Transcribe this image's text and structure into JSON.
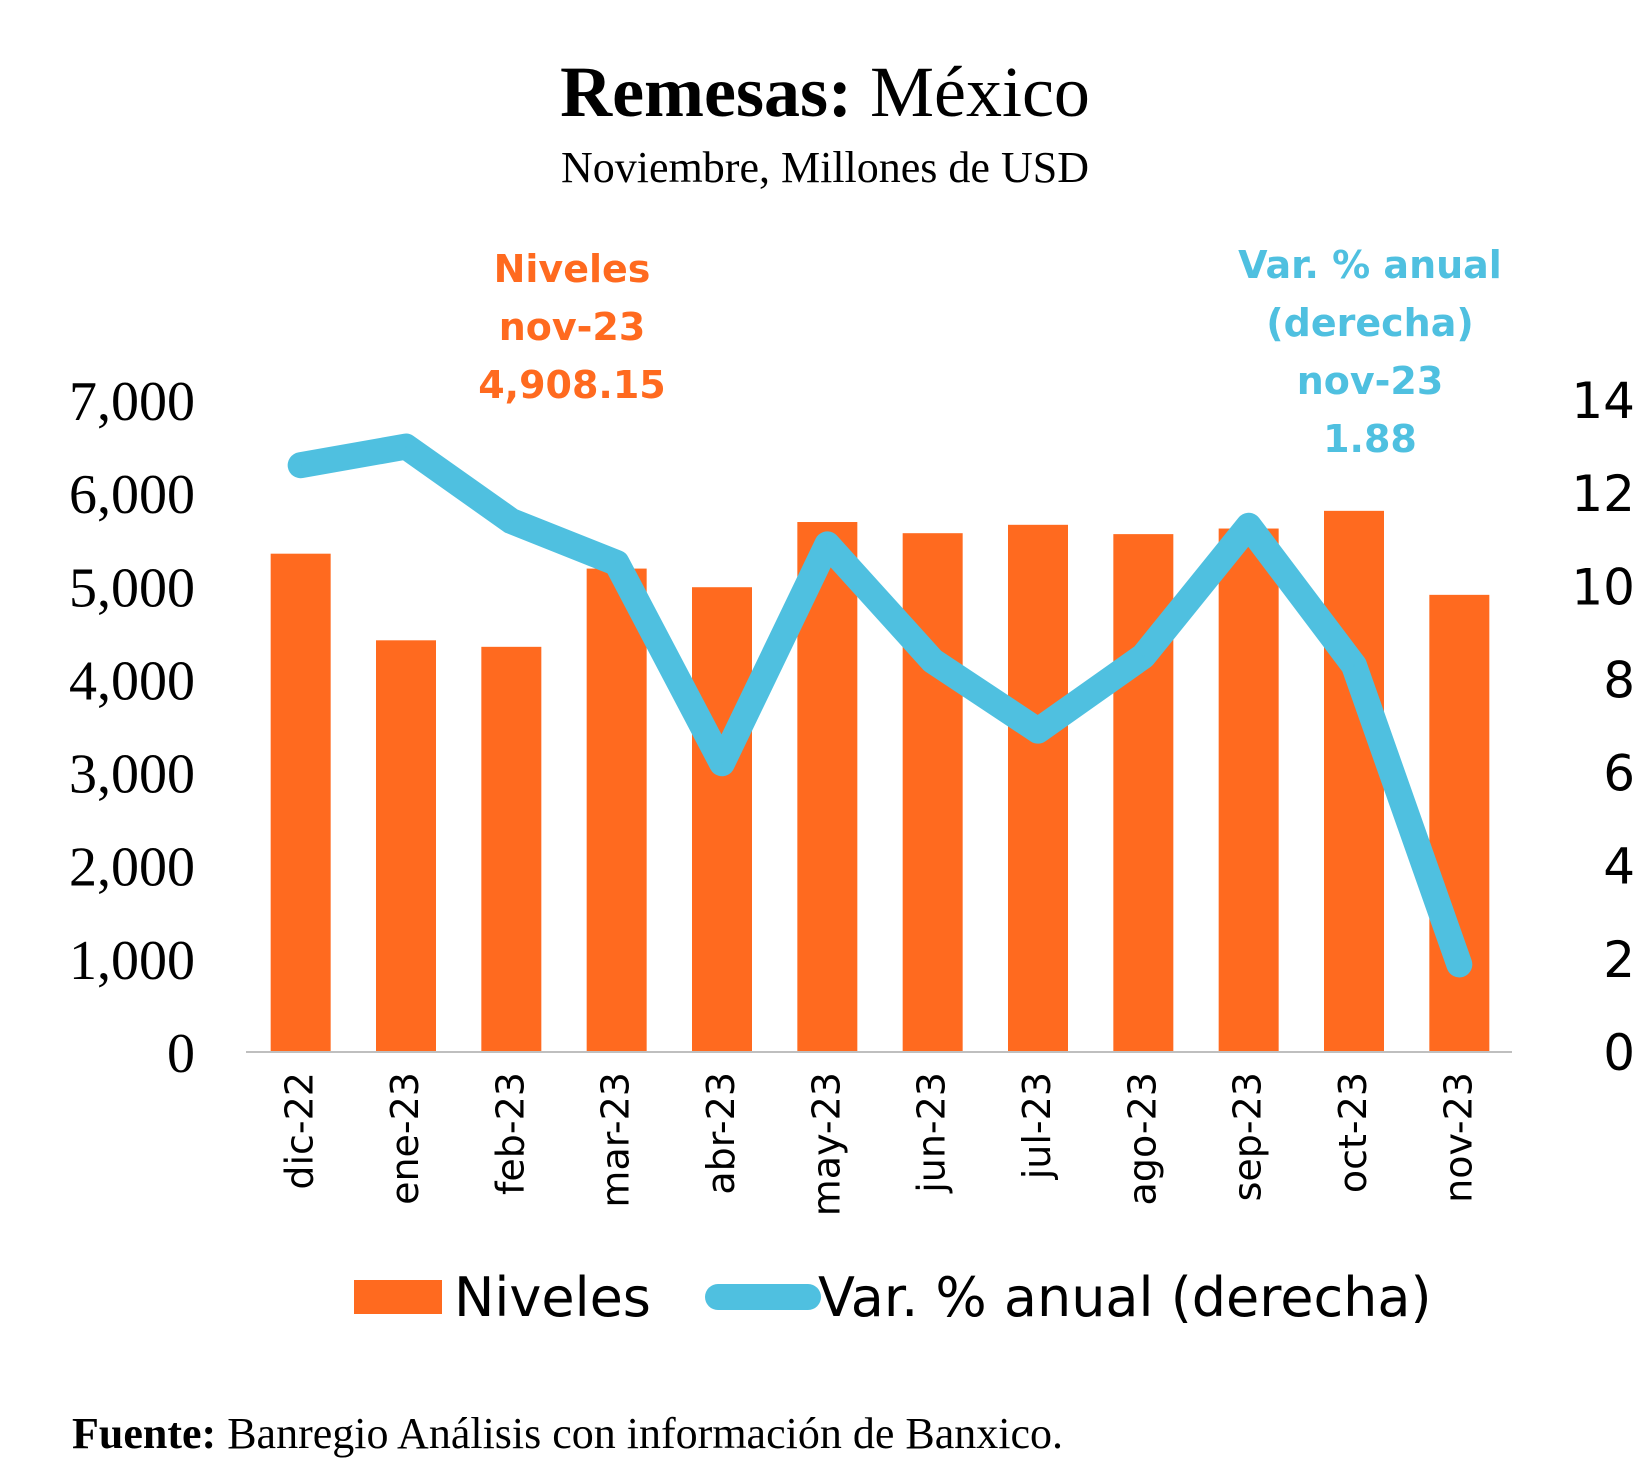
{
  "header": {
    "title_bold": "Remesas:",
    "title_rest": " México",
    "subtitle": "Noviembre, Millones de USD"
  },
  "annotations": {
    "bars": [
      "Niveles",
      "nov-23",
      "4,908.15"
    ],
    "line": [
      "Var. % anual",
      "(derecha)",
      "nov-23",
      "1.88"
    ]
  },
  "legend": {
    "bars_label": "Niveles",
    "line_label": "Var. % anual (derecha)"
  },
  "source": {
    "label": "Fuente:",
    "text": " Banregio Análisis con información de Banxico."
  },
  "colors": {
    "bars": "#FF6A1F",
    "line": "#4FC0E0",
    "axis": "#bfbfbf"
  },
  "chart_data": {
    "type": "bar",
    "categories": [
      "dic-22",
      "ene-23",
      "feb-23",
      "mar-23",
      "abr-23",
      "may-23",
      "jun-23",
      "jul-23",
      "ago-23",
      "sep-23",
      "oct-23",
      "nov-23"
    ],
    "series": [
      {
        "name": "Niveles",
        "type": "bar",
        "axis": "left",
        "values": [
          5350,
          4420,
          4350,
          5190,
          4990,
          5690,
          5570,
          5660,
          5560,
          5620,
          5810,
          4908.15
        ]
      },
      {
        "name": "Var. % anual (derecha)",
        "type": "line",
        "axis": "right",
        "values": [
          12.6,
          13.0,
          11.4,
          10.5,
          6.2,
          10.9,
          8.4,
          6.9,
          8.5,
          11.3,
          8.3,
          1.88
        ]
      }
    ],
    "y_left": {
      "min": 0,
      "max": 7000,
      "ticks": [
        "0",
        "1,000",
        "2,000",
        "3,000",
        "4,000",
        "5,000",
        "6,000",
        "7,000"
      ]
    },
    "y_right": {
      "min": 0,
      "max": 14,
      "ticks": [
        "0",
        "2",
        "4",
        "6",
        "8",
        "10",
        "12",
        "14"
      ]
    },
    "legend_position": "bottom",
    "grid": false
  }
}
